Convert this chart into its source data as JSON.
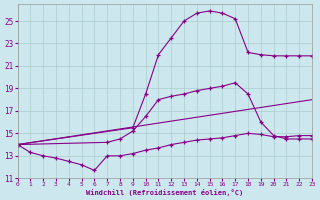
{
  "xlabel": "Windchill (Refroidissement éolien,°C)",
  "xlim": [
    0,
    23
  ],
  "ylim": [
    11,
    26.5
  ],
  "yticks": [
    11,
    13,
    15,
    17,
    19,
    21,
    23,
    25
  ],
  "xticks": [
    0,
    1,
    2,
    3,
    4,
    5,
    6,
    7,
    8,
    9,
    10,
    11,
    12,
    13,
    14,
    15,
    16,
    17,
    18,
    19,
    20,
    21,
    22,
    23
  ],
  "bg_color": "#cce8ee",
  "line_color": "#880088",
  "grid_color": "#aacccc",
  "line1_x": [
    0,
    1,
    2,
    3,
    4,
    5,
    6,
    7,
    8,
    9,
    10,
    11,
    12,
    13,
    14,
    15,
    16,
    17,
    18,
    19,
    20,
    21,
    22,
    23
  ],
  "line1_y": [
    14.0,
    13.3,
    13.0,
    12.8,
    12.5,
    12.2,
    11.7,
    13.0,
    13.0,
    13.2,
    13.5,
    13.7,
    14.0,
    14.2,
    14.4,
    14.5,
    14.6,
    14.8,
    15.0,
    14.9,
    14.7,
    14.7,
    14.8,
    14.8
  ],
  "line2_x": [
    0,
    9,
    10,
    11,
    12,
    13,
    14,
    15,
    16,
    17,
    18,
    19,
    20,
    21,
    22,
    23
  ],
  "line2_y": [
    14.0,
    15.5,
    18.5,
    22.0,
    23.5,
    25.0,
    25.7,
    25.9,
    25.7,
    25.2,
    22.2,
    22.0,
    21.9,
    21.9,
    21.9,
    21.9
  ],
  "line3_x": [
    0,
    7,
    8,
    9,
    10,
    11,
    12,
    13,
    14,
    15,
    16,
    17,
    18,
    19,
    20,
    21,
    22,
    23
  ],
  "line3_y": [
    14.0,
    14.2,
    14.5,
    15.2,
    16.5,
    18.0,
    18.3,
    18.5,
    18.8,
    19.0,
    19.2,
    19.5,
    18.5,
    16.0,
    14.8,
    14.5,
    14.5,
    14.5
  ],
  "line4_x": [
    0,
    23
  ],
  "line4_y": [
    14.0,
    18.0
  ]
}
